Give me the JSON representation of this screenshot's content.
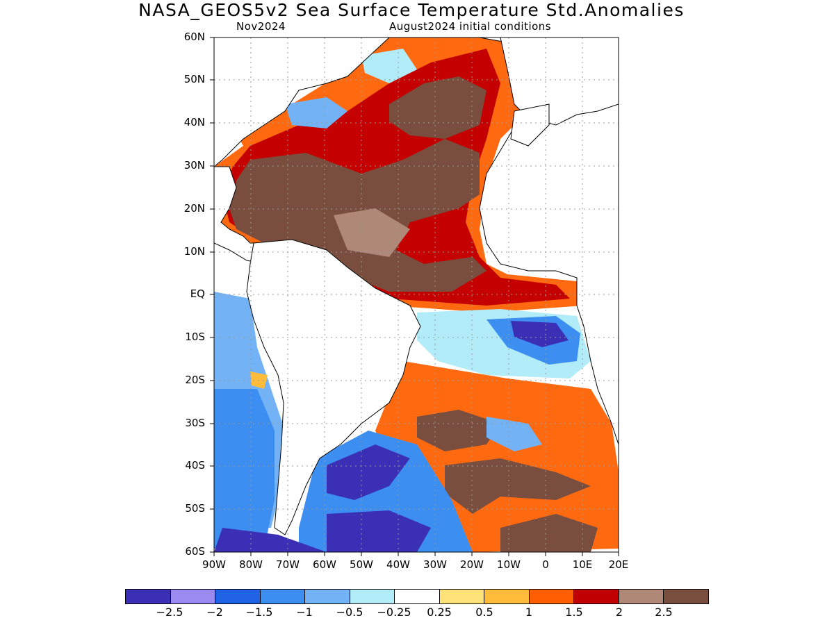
{
  "header": {
    "title": "NASA_GEOS5v2 Sea Surface Temperature Std.Anomalies",
    "forecast_month": "Nov2024",
    "init_conditions": "August2024 initial conditions"
  },
  "axes": {
    "lat_labels": [
      "60N",
      "50N",
      "40N",
      "30N",
      "20N",
      "10N",
      "EQ",
      "10S",
      "20S",
      "30S",
      "40S",
      "50S",
      "60S"
    ],
    "lon_labels": [
      "90W",
      "80W",
      "70W",
      "60W",
      "50W",
      "40W",
      "30W",
      "20W",
      "10W",
      "0",
      "10E",
      "20E"
    ]
  },
  "colorbar": {
    "colors": [
      "#3a2fb5",
      "#9b8af0",
      "#1f62e6",
      "#3c8ff0",
      "#74b2f6",
      "#b1ecf8",
      "#ffffff",
      "#ffe27a",
      "#ffbb3a",
      "#ff5f00",
      "#c00000",
      "#b08878",
      "#784e3e"
    ],
    "labels": [
      "−2.5",
      "−2",
      "−1.5",
      "−1",
      "−0.5",
      "−0.25",
      "0.25",
      "0.5",
      "1",
      "1.5",
      "2",
      "2.5"
    ]
  }
}
